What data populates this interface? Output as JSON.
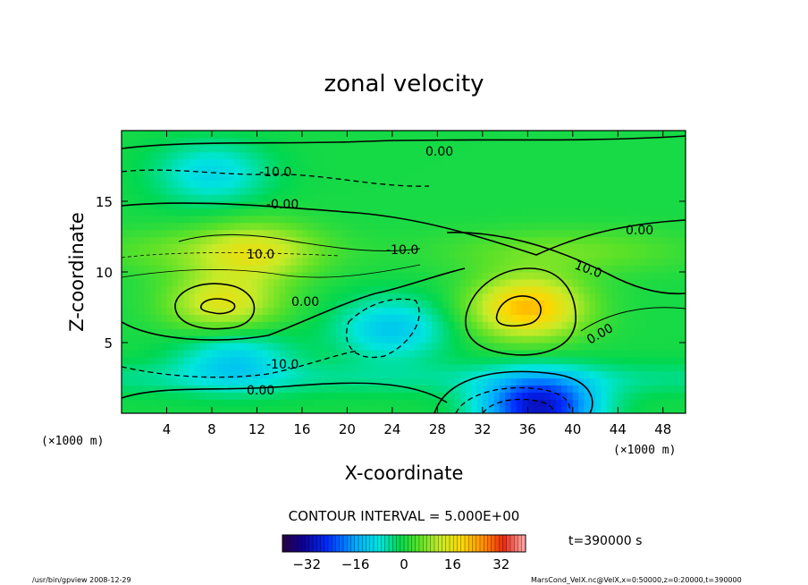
{
  "chart_data": {
    "type": "heatmap",
    "title": "zonal velocity",
    "xlabel": "X-coordinate",
    "ylabel": "Z-coordinate",
    "x_unit": "(×1000 m)",
    "y_unit": "(×1000 m)",
    "xlim": [
      0,
      50
    ],
    "ylim": [
      0,
      20
    ],
    "x_ticks": [
      "4",
      "8",
      "12",
      "16",
      "20",
      "24",
      "28",
      "32",
      "36",
      "40",
      "44",
      "48"
    ],
    "y_ticks": [
      "5",
      "10",
      "15"
    ],
    "contour_labels": [
      "0.00",
      "-10.0",
      "-0.00",
      "0.00",
      "10.0",
      "-10.0",
      "10.0",
      "0.00",
      "0.00",
      "-10.0",
      "0.00"
    ],
    "contour_interval": "CONTOUR INTERVAL = 5.000E+00",
    "colorbar": {
      "range": [
        -40,
        40
      ],
      "ticks": [
        "−32",
        "−16",
        "0",
        "16",
        "32"
      ]
    },
    "time": "t=390000 s",
    "features": [
      {
        "x": 36,
        "z": 7.5,
        "u": 22
      },
      {
        "x": 9,
        "z": 7.8,
        "u": 15
      },
      {
        "x": 12,
        "z": 11.5,
        "u": 10
      },
      {
        "x": 37,
        "z": 0.5,
        "u": -30
      },
      {
        "x": 24,
        "z": 6,
        "u": -12
      },
      {
        "x": 10,
        "z": 4,
        "u": -11
      },
      {
        "x": 8,
        "z": 17,
        "u": -10
      }
    ]
  },
  "footer": {
    "left": "/usr/bin/gpview   2008-12-29",
    "right": "MarsCond_VelX.nc@VelX,x=0:50000,z=0:20000,t=390000"
  }
}
